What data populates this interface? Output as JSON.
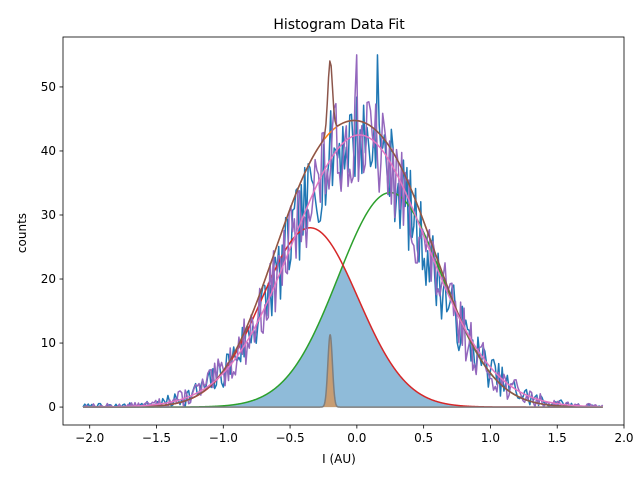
{
  "chart_data": {
    "type": "line",
    "title": "Histogram Data Fit",
    "xlabel": "I (AU)",
    "ylabel": "counts",
    "xlim": [
      -2.2,
      2.0
    ],
    "ylim": [
      -2.8,
      57.8
    ],
    "xticks": [
      -2.0,
      -1.5,
      -1.0,
      -0.5,
      0.0,
      0.5,
      1.0,
      1.5,
      2.0
    ],
    "xtick_labels": [
      "−2.0",
      "−1.5",
      "−1.0",
      "−0.5",
      "0.0",
      "0.5",
      "1.0",
      "1.5",
      "2.0"
    ],
    "yticks": [
      0,
      10,
      20,
      30,
      40,
      50
    ],
    "ytick_labels": [
      "0",
      "10",
      "20",
      "30",
      "40",
      "50"
    ],
    "grid": false,
    "x_range": [
      -2.05,
      1.84
    ],
    "series": [
      {
        "kind": "histogram",
        "color": "#1f77b4",
        "peak_x": 0.15,
        "peak_y": 55,
        "baseline_amp": 42,
        "center": 0.0,
        "sigma": 0.5,
        "seed": 7
      },
      {
        "kind": "gaussian_sum",
        "color": "#ff7f0e",
        "components": [
          [
            28,
            -0.35,
            0.36
          ],
          [
            33.5,
            0.25,
            0.39
          ]
        ]
      },
      {
        "kind": "gaussian",
        "color": "#2ca02c",
        "amp": 33.5,
        "center": 0.25,
        "sigma": 0.39
      },
      {
        "kind": "gaussian",
        "color": "#d62728",
        "amp": 28,
        "center": -0.35,
        "sigma": 0.36
      },
      {
        "kind": "histogram",
        "color": "#9467bd",
        "peak_x": 0.0,
        "peak_y": 55,
        "baseline_amp": 42,
        "center": 0.0,
        "sigma": 0.5,
        "seed": 13
      },
      {
        "kind": "gaussian_sum",
        "color": "#8c564b",
        "components": [
          [
            28,
            -0.35,
            0.36
          ],
          [
            33.5,
            0.25,
            0.39
          ],
          [
            11.3,
            -0.2,
            0.017
          ]
        ]
      },
      {
        "kind": "gaussian_sum",
        "color": "#e377c2",
        "components": [
          [
            42.5,
            0.02,
            0.5
          ]
        ]
      },
      {
        "kind": "gaussian",
        "color": "#7f7f7f",
        "amp": 11.3,
        "center": -0.2,
        "sigma": 0.017
      }
    ],
    "fills": [
      {
        "kind": "min_of_gaussians",
        "color": "#1f77b4",
        "opacity": 0.5,
        "components": [
          [
            28,
            -0.35,
            0.36
          ],
          [
            33.5,
            0.25,
            0.39
          ]
        ]
      },
      {
        "kind": "gaussian",
        "color": "#ff7f0e",
        "opacity": 0.5,
        "amp": 11.3,
        "center": -0.2,
        "sigma": 0.017
      }
    ]
  }
}
